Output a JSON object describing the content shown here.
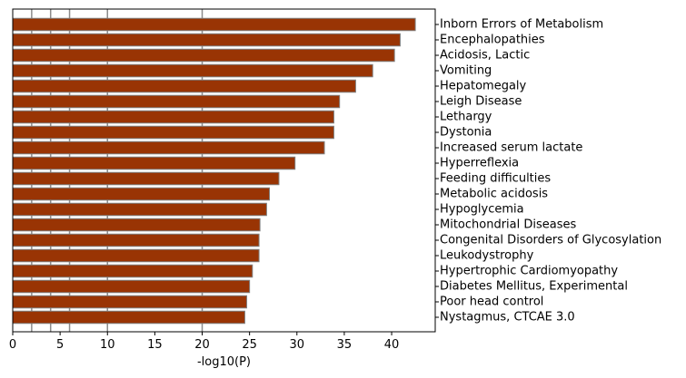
{
  "chart_data": {
    "type": "bar",
    "orientation": "horizontal",
    "categories": [
      "Inborn Errors of Metabolism",
      "Encephalopathies",
      "Acidosis, Lactic",
      "Vomiting",
      "Hepatomegaly",
      "Leigh Disease",
      "Lethargy",
      "Dystonia",
      "Increased serum lactate",
      "Hyperreflexia",
      "Feeding difficulties",
      "Metabolic acidosis",
      "Hypoglycemia",
      "Mitochondrial Diseases",
      "Congenital Disorders of Glycosylation",
      "Leukodystrophy",
      "Hypertrophic Cardiomyopathy",
      "Diabetes Mellitus, Experimental",
      "Poor head control",
      "Nystagmus, CTCAE 3.0"
    ],
    "values": [
      42.5,
      40.9,
      40.3,
      38.0,
      36.2,
      34.5,
      33.9,
      33.9,
      32.9,
      29.8,
      28.1,
      27.1,
      26.8,
      26.1,
      26.0,
      26.0,
      25.3,
      25.0,
      24.7,
      24.5
    ],
    "xlabel": "-log10(P)",
    "ylabel": "",
    "title": "",
    "xlim": [
      0,
      44.6
    ],
    "xticks": [
      "0",
      "5",
      "10",
      "15",
      "20",
      "25",
      "30",
      "35",
      "40"
    ],
    "xtick_values": [
      0,
      5,
      10,
      15,
      20,
      25,
      30,
      35,
      40
    ],
    "vertical_reference_lines": [
      2,
      4,
      6,
      10,
      20
    ],
    "category_label_side": "right",
    "grid": false,
    "legend": "none",
    "colors": {
      "bar_fill": "#993404",
      "bar_edge": "#7f7f7f",
      "reference_line": "#8c8c8c",
      "axis": "#000000"
    }
  }
}
